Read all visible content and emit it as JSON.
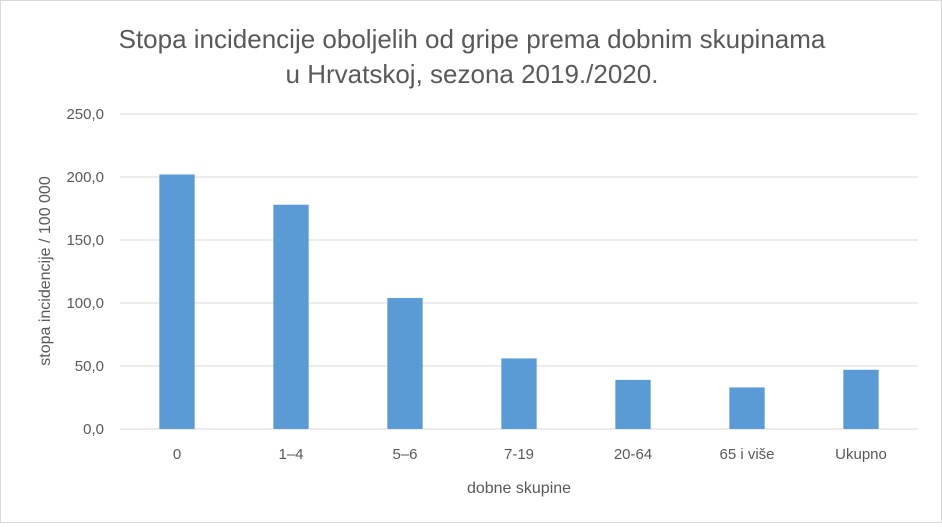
{
  "chart_data": {
    "type": "bar",
    "title_line1": "Stopa incidencije oboljelih od gripe prema dobnim skupinama",
    "title_line2": "u Hrvatskoj, sezona 2019./2020.",
    "xlabel": "dobne skupine",
    "ylabel": "stopa incidencije / 100 000",
    "categories": [
      "0",
      "1–4",
      "5–6",
      "7-19",
      "20-64",
      "65 i više",
      "Ukupno"
    ],
    "values": [
      202,
      178,
      104,
      56,
      39,
      33,
      47
    ],
    "ylim": [
      0,
      250
    ],
    "yticks": [
      "0,0",
      "50,0",
      "100,0",
      "150,0",
      "200,0",
      "250,0"
    ],
    "grid": true,
    "legend": "none",
    "bar_color": "#5b9bd5",
    "grid_color": "#d9d9d9"
  }
}
